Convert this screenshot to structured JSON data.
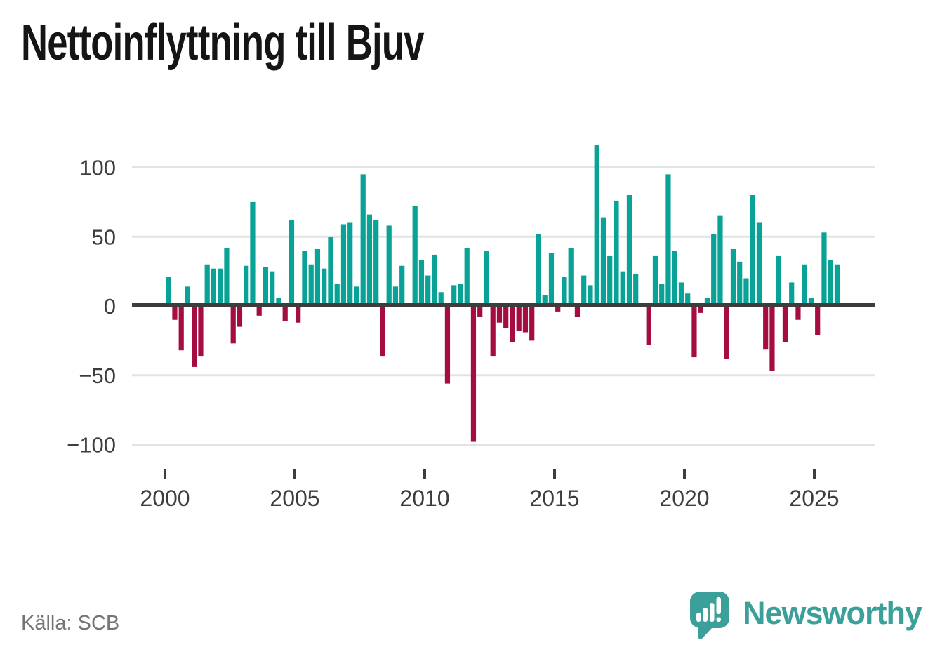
{
  "title": "Nettoinflyttning till Bjuv",
  "source": "Källa: SCB",
  "branding": {
    "wordmark": "Newsworthy",
    "logo_icon": "newsworthy-speech-bubble-bars-icon",
    "brand_color": "#3ca09a"
  },
  "chart_data": {
    "type": "bar",
    "title": "Nettoinflyttning till Bjuv",
    "xlabel": "",
    "ylabel": "",
    "frequency": "quarterly",
    "start": "2000-Q1",
    "end": "2025-Q4",
    "values": [
      21,
      -10,
      -32,
      14,
      -44,
      -36,
      30,
      27,
      27,
      42,
      -27,
      -15,
      29,
      75,
      -7,
      28,
      25,
      6,
      -11,
      62,
      -12,
      40,
      30,
      41,
      27,
      50,
      16,
      59,
      60,
      14,
      95,
      66,
      62,
      -36,
      58,
      14,
      29,
      0,
      72,
      33,
      22,
      37,
      10,
      -56,
      15,
      16,
      42,
      -98,
      -8,
      40,
      -36,
      -12,
      -16,
      -26,
      -18,
      -19,
      -25,
      52,
      8,
      38,
      -4,
      21,
      42,
      -8,
      22,
      15,
      116,
      64,
      36,
      76,
      25,
      80,
      23,
      0,
      -28,
      36,
      16,
      95,
      40,
      17,
      9,
      -37,
      -5,
      6,
      52,
      65,
      -38,
      41,
      32,
      20,
      80,
      60,
      -31,
      -47,
      36,
      -26,
      17,
      -10,
      30,
      6,
      -21,
      53,
      33,
      30
    ],
    "x_tick_labels": [
      2000,
      2005,
      2010,
      2015,
      2020,
      2025
    ],
    "y_ticks": [
      100,
      50,
      0,
      -50,
      -100
    ],
    "ylim": [
      -110,
      125
    ],
    "grid": "horizontal",
    "legend": "none",
    "colors": {
      "positive": "#09a296",
      "negative": "#a50d42",
      "axis_text": "#3d3d3d",
      "gridline": "#e3e3e3",
      "zero_line": "#3d3d3d"
    }
  }
}
